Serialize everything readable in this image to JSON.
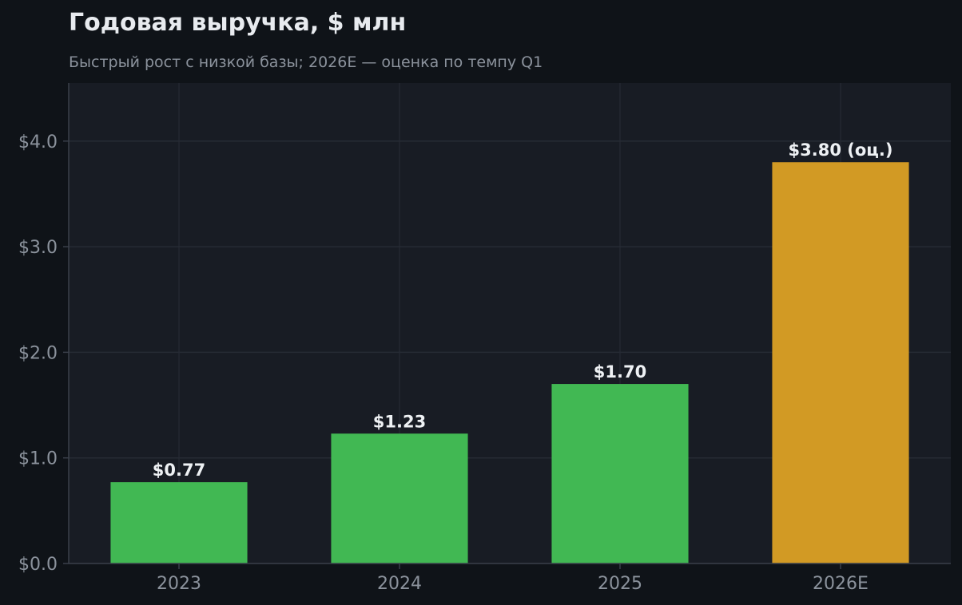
{
  "chart_data": {
    "type": "bar",
    "title": "Годовая выручка, $ млн",
    "subtitle": "Быстрый рост с низкой базы; 2026E — оценка по темпу Q1",
    "categories": [
      "2023",
      "2024",
      "2025",
      "2026E"
    ],
    "values": [
      0.77,
      1.23,
      1.7,
      3.8
    ],
    "data_labels": [
      "$0.77",
      "$1.23",
      "$1.70",
      "$3.80 (оц.)"
    ],
    "bar_colors": [
      "#41b853",
      "#41b853",
      "#41b853",
      "#d29a24"
    ],
    "xlabel": "",
    "ylabel": "",
    "ylim": [
      0,
      4.55
    ],
    "yticks": [
      0,
      1,
      2,
      3,
      4
    ],
    "ytick_labels": [
      "$0.0",
      "$1.0",
      "$2.0",
      "$3.0",
      "$4.0"
    ],
    "grid": true,
    "colors": {
      "background": "#0f1318",
      "plot_background": "#181c24",
      "grid": "#262b34",
      "axis": "#3a404a"
    }
  }
}
